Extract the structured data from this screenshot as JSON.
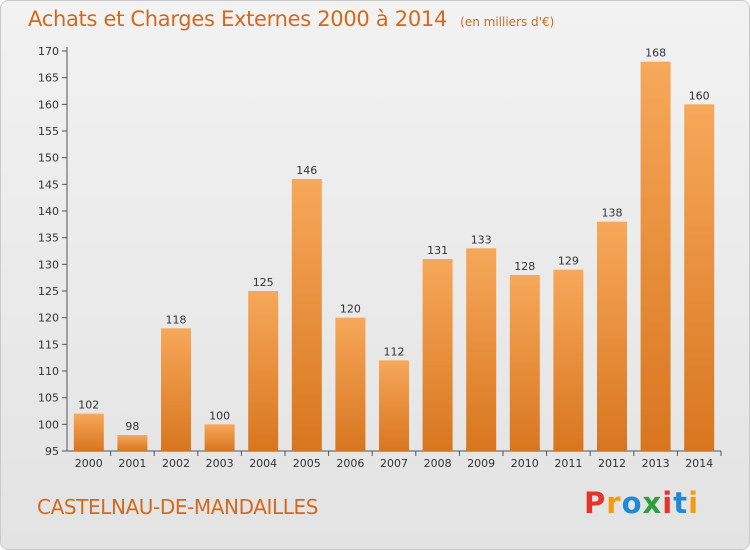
{
  "header": {
    "title": "Achats et Charges Externes 2000 à 2014",
    "subtitle": "(en milliers d'€)"
  },
  "footer": {
    "place": "CASTELNAU-DE-MANDAILLES",
    "logo": "Proxiti"
  },
  "colors": {
    "bar_top": "#f7a85a",
    "bar_bottom": "#d8761f",
    "accent_text": "#d2691e",
    "logo_letters": [
      "#e2362b",
      "#f39c12",
      "#1f8ad6",
      "#2e9e3e",
      "#e2362b",
      "#1f8ad6",
      "#f39c12"
    ]
  },
  "chart_data": {
    "type": "bar",
    "title": "Achats et Charges Externes 2000 à 2014",
    "subtitle": "(en milliers d'€)",
    "categories": [
      "2000",
      "2001",
      "2002",
      "2003",
      "2004",
      "2005",
      "2006",
      "2007",
      "2008",
      "2009",
      "2010",
      "2011",
      "2012",
      "2013",
      "2014"
    ],
    "values": [
      102,
      98,
      118,
      100,
      125,
      146,
      120,
      112,
      131,
      133,
      128,
      129,
      138,
      168,
      160
    ],
    "ylim": [
      95,
      170
    ],
    "yticks": [
      95,
      100,
      105,
      110,
      115,
      120,
      125,
      130,
      135,
      140,
      145,
      150,
      155,
      160,
      165,
      170
    ],
    "grid": false,
    "data_labels": true
  }
}
